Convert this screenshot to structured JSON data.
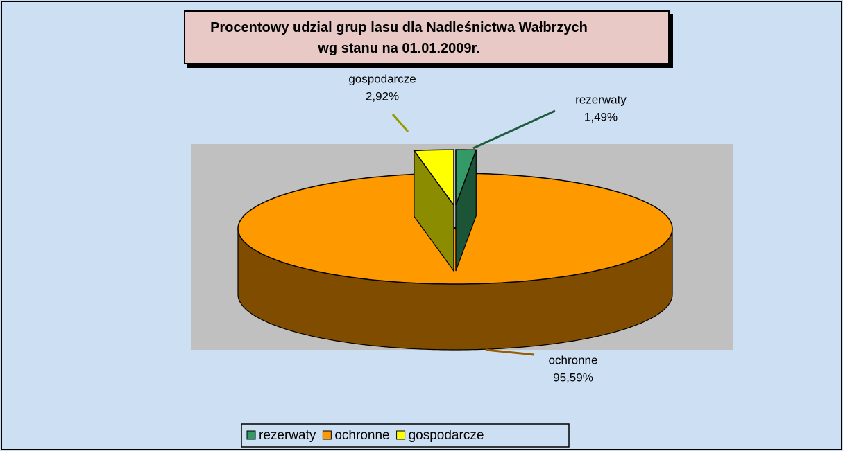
{
  "chart_data": {
    "type": "pie",
    "title": "Procentowy udzial grup lasu dla Nadleśnictwa Wałbrzych wg stanu na 01.01.2009r.",
    "categories": [
      "rezerwaty",
      "ochronne",
      "gospodarcze"
    ],
    "values": [
      1.49,
      95.59,
      2.92
    ],
    "value_labels": [
      "1,49%",
      "95,59%",
      "2,92%"
    ],
    "colors": [
      "#339966",
      "#ff9900",
      "#ffff00"
    ],
    "legend": "bottom"
  }
}
